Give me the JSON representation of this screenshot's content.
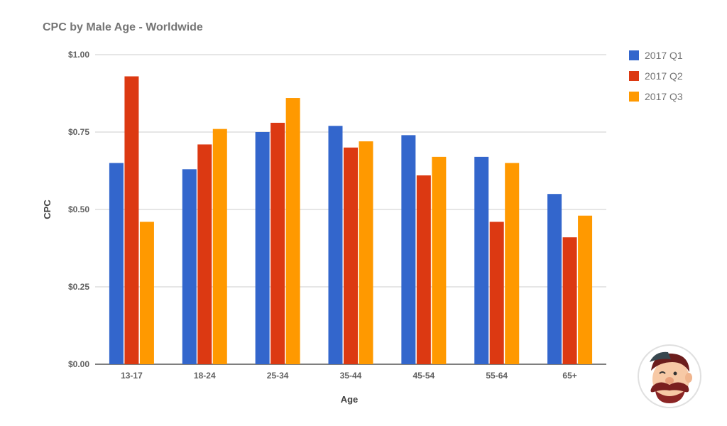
{
  "title": "CPC by Male Age - Worldwide",
  "chart_data": {
    "type": "bar",
    "title": "CPC by Male Age - Worldwide",
    "xlabel": "Age",
    "ylabel": "CPC",
    "categories": [
      "13-17",
      "18-24",
      "25-34",
      "35-44",
      "45-54",
      "55-64",
      "65+"
    ],
    "series": [
      {
        "name": "2017 Q1",
        "color": "#3366cc",
        "values": [
          0.65,
          0.63,
          0.75,
          0.77,
          0.74,
          0.67,
          0.55
        ]
      },
      {
        "name": "2017 Q2",
        "color": "#dc3912",
        "values": [
          0.93,
          0.71,
          0.78,
          0.7,
          0.61,
          0.46,
          0.41
        ]
      },
      {
        "name": "2017 Q3",
        "color": "#ff9900",
        "values": [
          0.46,
          0.76,
          0.86,
          0.72,
          0.67,
          0.65,
          0.48
        ]
      }
    ],
    "ylim": [
      0,
      1
    ],
    "yticks": [
      "$0.00",
      "$0.25",
      "$0.50",
      "$0.75",
      "$1.00"
    ],
    "ytick_values": [
      0,
      0.25,
      0.5,
      0.75,
      1.0
    ],
    "grid": true,
    "legend_position": "right"
  },
  "mascot_icon": "mustache-mascot-icon"
}
